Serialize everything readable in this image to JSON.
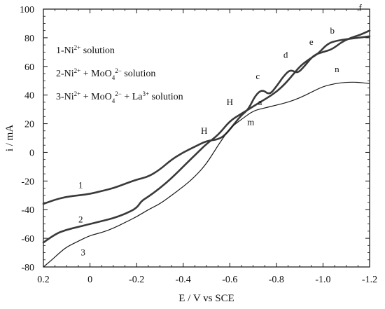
{
  "chart_data": {
    "type": "line",
    "title": "",
    "xlabel": "E / V vs SCE",
    "ylabel": "i / mA",
    "xlim": [
      0.2,
      -1.2
    ],
    "ylim": [
      -80,
      100
    ],
    "x_ticks": [
      "0.2",
      "0",
      "-0.2",
      "-0.4",
      "-0.6",
      "-0.8",
      "-1.0",
      "-1.2"
    ],
    "x_tick_values": [
      0.2,
      0,
      -0.2,
      -0.4,
      -0.6,
      -0.8,
      -1.0,
      -1.2
    ],
    "y_ticks": [
      "100",
      "80",
      "60",
      "40",
      "20",
      "0",
      "-20",
      "-40",
      "-60",
      "-80"
    ],
    "y_tick_values": [
      100,
      80,
      60,
      40,
      20,
      0,
      -20,
      -40,
      -60,
      -80
    ],
    "grid": false,
    "legend_placement": "top-left",
    "legend": [
      {
        "id": "1",
        "parts": [
          [
            "1-Ni",
            ""
          ],
          [
            "2+",
            "sup"
          ],
          [
            " solution",
            ""
          ]
        ]
      },
      {
        "id": "2",
        "parts": [
          [
            "2-Ni",
            ""
          ],
          [
            "2+",
            "sup"
          ],
          [
            " + MoO",
            ""
          ],
          [
            "4",
            "sub"
          ],
          [
            "2−",
            "sup"
          ],
          [
            " solution",
            ""
          ]
        ]
      },
      {
        "id": "3",
        "parts": [
          [
            "3-Ni",
            ""
          ],
          [
            "2+",
            "sup"
          ],
          [
            " + MoO",
            ""
          ],
          [
            "4",
            "sub"
          ],
          [
            "2−",
            "sup"
          ],
          [
            " + La",
            ""
          ],
          [
            "3+",
            "sup"
          ],
          [
            " solution",
            ""
          ]
        ]
      }
    ],
    "series": [
      {
        "id": "1",
        "stroke": "#3a3a3a",
        "points": [
          [
            0.2,
            -36
          ],
          [
            0.15,
            -33
          ],
          [
            0.1,
            -31
          ],
          [
            0.05,
            -30
          ],
          [
            0.0,
            -29
          ],
          [
            -0.05,
            -27
          ],
          [
            -0.1,
            -25
          ],
          [
            -0.15,
            -22
          ],
          [
            -0.2,
            -19
          ],
          [
            -0.25,
            -17
          ],
          [
            -0.3,
            -12
          ],
          [
            -0.35,
            -5
          ],
          [
            -0.4,
            0
          ],
          [
            -0.45,
            4
          ],
          [
            -0.5,
            8
          ],
          [
            -0.55,
            9
          ],
          [
            -0.58,
            12
          ],
          [
            -0.62,
            20
          ],
          [
            -0.65,
            26
          ],
          [
            -0.68,
            30
          ],
          [
            -0.71,
            40
          ],
          [
            -0.74,
            44
          ],
          [
            -0.77,
            40
          ],
          [
            -0.8,
            46
          ],
          [
            -0.83,
            53
          ],
          [
            -0.86,
            58
          ],
          [
            -0.89,
            55
          ],
          [
            -0.92,
            60
          ],
          [
            -0.96,
            68
          ],
          [
            -1.0,
            70
          ],
          [
            -1.04,
            72
          ],
          [
            -1.08,
            77
          ],
          [
            -1.12,
            80
          ],
          [
            -1.16,
            82
          ],
          [
            -1.2,
            85
          ]
        ]
      },
      {
        "id": "2",
        "stroke": "#3a3a3a",
        "points": [
          [
            0.2,
            -63
          ],
          [
            0.15,
            -57
          ],
          [
            0.1,
            -54
          ],
          [
            0.05,
            -52
          ],
          [
            0.0,
            -50
          ],
          [
            -0.05,
            -48
          ],
          [
            -0.1,
            -46
          ],
          [
            -0.15,
            -43
          ],
          [
            -0.2,
            -39
          ],
          [
            -0.22,
            -34
          ],
          [
            -0.25,
            -31
          ],
          [
            -0.3,
            -25
          ],
          [
            -0.35,
            -18
          ],
          [
            -0.4,
            -10
          ],
          [
            -0.45,
            -2
          ],
          [
            -0.5,
            6
          ],
          [
            -0.55,
            12
          ],
          [
            -0.6,
            22
          ],
          [
            -0.65,
            27
          ],
          [
            -0.7,
            32
          ],
          [
            -0.74,
            36
          ],
          [
            -0.78,
            40
          ],
          [
            -0.82,
            45
          ],
          [
            -0.86,
            52
          ],
          [
            -0.9,
            60
          ],
          [
            -0.94,
            65
          ],
          [
            -0.98,
            69
          ],
          [
            -1.02,
            76
          ],
          [
            -1.06,
            78
          ],
          [
            -1.1,
            79
          ],
          [
            -1.15,
            80
          ],
          [
            -1.2,
            81
          ]
        ]
      },
      {
        "id": "3",
        "stroke": "#1a1a1a",
        "points": [
          [
            0.2,
            -80
          ],
          [
            0.17,
            -76
          ],
          [
            0.13,
            -70
          ],
          [
            0.1,
            -66
          ],
          [
            0.05,
            -62
          ],
          [
            0.0,
            -58
          ],
          [
            -0.05,
            -56
          ],
          [
            -0.1,
            -53
          ],
          [
            -0.15,
            -49
          ],
          [
            -0.2,
            -45
          ],
          [
            -0.25,
            -40
          ],
          [
            -0.3,
            -36
          ],
          [
            -0.35,
            -30
          ],
          [
            -0.4,
            -24
          ],
          [
            -0.45,
            -17
          ],
          [
            -0.5,
            -8
          ],
          [
            -0.55,
            5
          ],
          [
            -0.6,
            17
          ],
          [
            -0.65,
            23
          ],
          [
            -0.7,
            29
          ],
          [
            -0.75,
            31
          ],
          [
            -0.8,
            33
          ],
          [
            -0.85,
            35
          ],
          [
            -0.9,
            38
          ],
          [
            -0.95,
            42
          ],
          [
            -1.0,
            46
          ],
          [
            -1.05,
            48
          ],
          [
            -1.1,
            49
          ],
          [
            -1.15,
            49
          ],
          [
            -1.2,
            48
          ]
        ]
      }
    ],
    "annotations": [
      {
        "text": "1",
        "x": 0.04,
        "y": -25
      },
      {
        "text": "2",
        "x": 0.04,
        "y": -49
      },
      {
        "text": "3",
        "x": 0.03,
        "y": -72
      },
      {
        "text": "H",
        "x": -0.49,
        "y": 13
      },
      {
        "text": "H",
        "x": -0.6,
        "y": 33
      },
      {
        "text": "a",
        "x": -0.73,
        "y": 33
      },
      {
        "text": "m",
        "x": -0.69,
        "y": 19
      },
      {
        "text": "c",
        "x": -0.72,
        "y": 51
      },
      {
        "text": "d",
        "x": -0.84,
        "y": 66
      },
      {
        "text": "e",
        "x": -0.95,
        "y": 75
      },
      {
        "text": "b",
        "x": -1.04,
        "y": 83
      },
      {
        "text": "f",
        "x": -1.16,
        "y": 99
      },
      {
        "text": "n",
        "x": -1.06,
        "y": 56
      }
    ]
  }
}
